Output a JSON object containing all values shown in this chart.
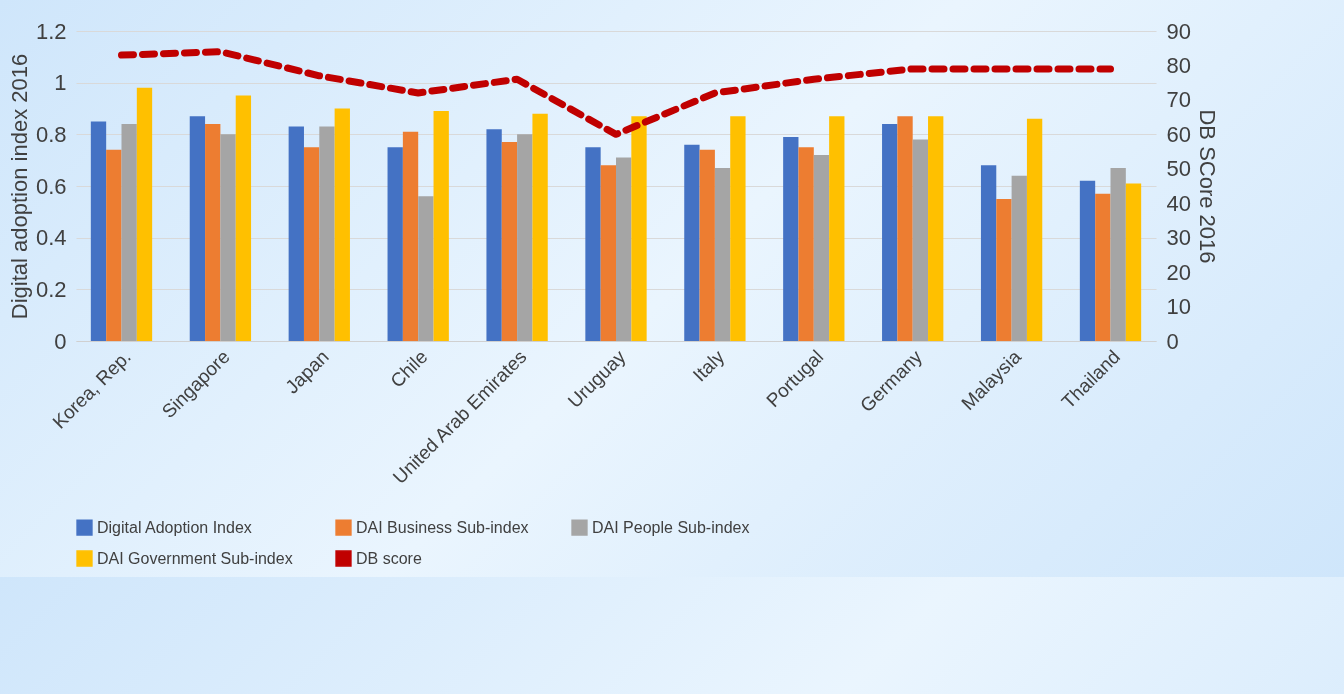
{
  "chart_data": {
    "type": "bar",
    "ylabel": "Digital adoption index 2016",
    "y2label": "DB SCore 2016",
    "categories": [
      "Korea, Rep.",
      "Singapore",
      "Japan",
      "Chile",
      "United Arab Emirates",
      "Uruguay",
      "Italy",
      "Portugal",
      "Germany",
      "Malaysia",
      "Thailand"
    ],
    "series": [
      {
        "name": "Digital Adoption Index",
        "color": "#4472c4",
        "values": [
          0.85,
          0.87,
          0.83,
          0.75,
          0.82,
          0.75,
          0.76,
          0.79,
          0.84,
          0.68,
          0.62
        ]
      },
      {
        "name": "DAI Business Sub-index",
        "color": "#ed7d31",
        "values": [
          0.74,
          0.84,
          0.75,
          0.81,
          0.77,
          0.68,
          0.74,
          0.75,
          0.87,
          0.55,
          0.57
        ]
      },
      {
        "name": "DAI People Sub-index",
        "color": "#a5a5a5",
        "values": [
          0.84,
          0.8,
          0.83,
          0.56,
          0.8,
          0.71,
          0.67,
          0.72,
          0.78,
          0.64,
          0.67
        ]
      },
      {
        "name": "DAI Government Sub-index",
        "color": "#ffc000",
        "values": [
          0.98,
          0.95,
          0.9,
          0.89,
          0.88,
          0.87,
          0.87,
          0.87,
          0.87,
          0.86,
          0.61
        ]
      },
      {
        "name": "DB score",
        "color": "#c00000",
        "type": "line",
        "axis": "y2",
        "line_style": "dashed",
        "values": [
          83,
          84,
          77,
          72,
          76,
          60,
          72,
          76,
          79,
          79,
          79
        ]
      }
    ],
    "ylim": [
      0,
      1.2
    ],
    "yticks": [
      0,
      0.2,
      0.4,
      0.6,
      0.8,
      1,
      1.2
    ],
    "y2lim": [
      0,
      90
    ],
    "y2ticks": [
      0,
      10,
      20,
      30,
      40,
      50,
      60,
      70,
      80,
      90
    ],
    "grid": "y",
    "legend": "bottom"
  }
}
